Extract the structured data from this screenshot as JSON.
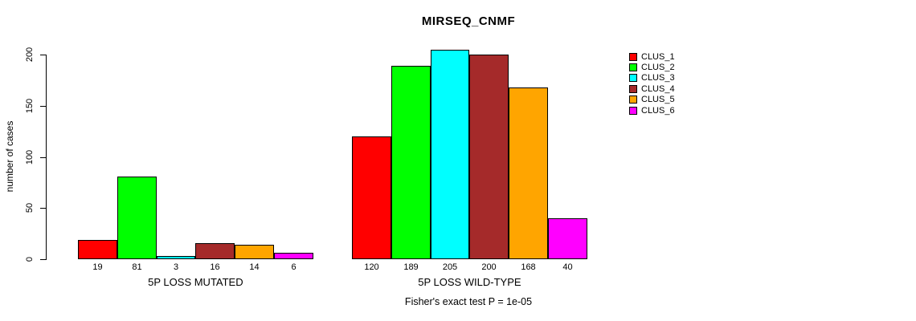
{
  "chart_data": {
    "type": "bar",
    "title": "MIRSEQ_CNMF",
    "ylabel": "number of cases",
    "annotation": "Fisher's exact test P = 1e-05",
    "ylim": [
      0,
      205
    ],
    "yticks": [
      0,
      50,
      100,
      150,
      200
    ],
    "grid": false,
    "legend_position": "right",
    "bar_border_color": "#000000",
    "series": [
      {
        "name": "CLUS_1",
        "color": "#FF0000"
      },
      {
        "name": "CLUS_2",
        "color": "#00FF00"
      },
      {
        "name": "CLUS_3",
        "color": "#00FFFF"
      },
      {
        "name": "CLUS_4",
        "color": "#A52A2A"
      },
      {
        "name": "CLUS_5",
        "color": "#FFA500"
      },
      {
        "name": "CLUS_6",
        "color": "#FF00FF"
      }
    ],
    "groups": [
      {
        "label": "5P LOSS MUTATED",
        "values": [
          19,
          81,
          3,
          16,
          14,
          6
        ]
      },
      {
        "label": "5P LOSS WILD-TYPE",
        "values": [
          120,
          189,
          205,
          200,
          168,
          40
        ]
      }
    ]
  }
}
